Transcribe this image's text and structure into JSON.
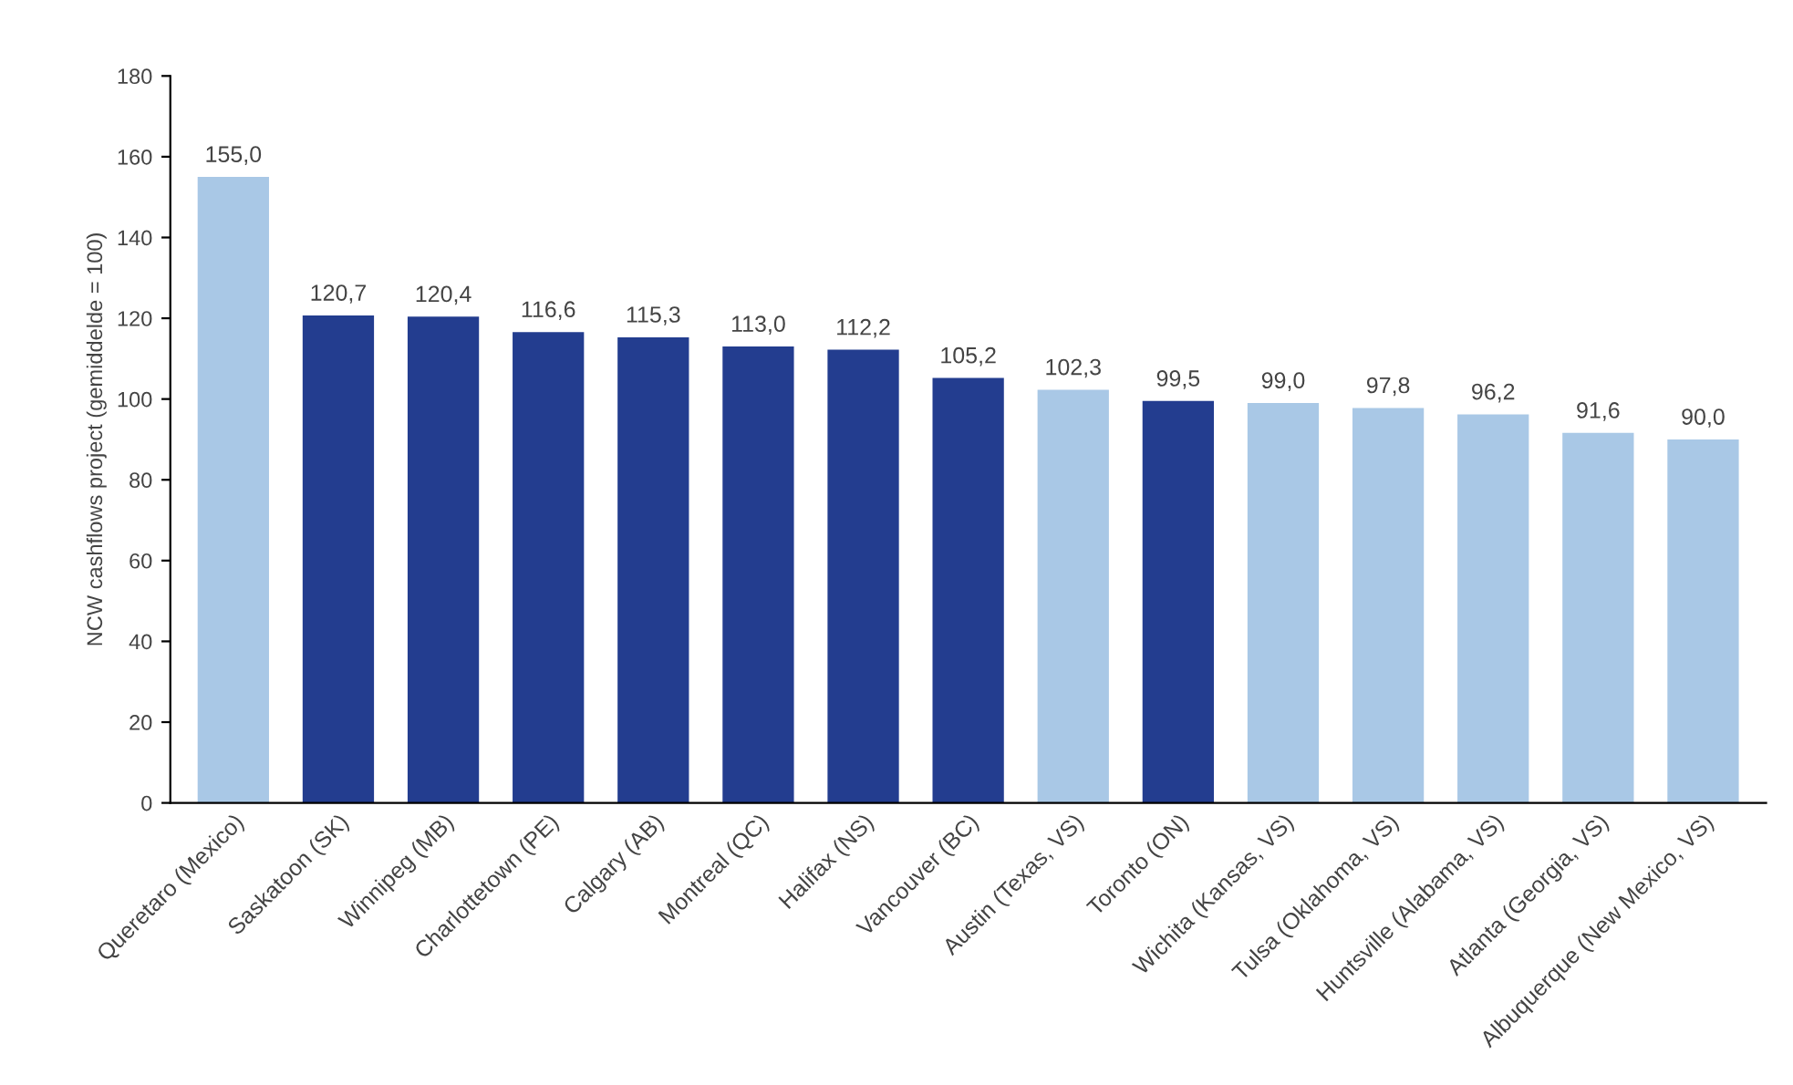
{
  "chart_data": {
    "type": "bar",
    "ylabel": "NCW cashflows project (gemiddelde = 100)",
    "categories": [
      "Queretaro (Mexico)",
      "Saskatoon (SK)",
      "Winnipeg (MB)",
      "Charlottetown (PE)",
      "Calgary (AB)",
      "Montreal (QC)",
      "Halifax (NS)",
      "Vancouver (BC)",
      "Austin (Texas, VS)",
      "Toronto (ON)",
      "Wichita (Kansas, VS)",
      "Tulsa (Oklahoma, VS)",
      "Huntsville (Alabama, VS)",
      "Atlanta (Georgia, VS)",
      "Albuquerque (New Mexico, VS)"
    ],
    "values": [
      155.0,
      120.7,
      120.4,
      116.6,
      115.3,
      113.0,
      112.2,
      105.2,
      102.3,
      99.5,
      99.0,
      97.8,
      96.2,
      91.6,
      90.0
    ],
    "value_labels": [
      "155,0",
      "120,7",
      "120,4",
      "116,6",
      "115,3",
      "113,0",
      "112,2",
      "105,2",
      "102,3",
      "99,5",
      "99,0",
      "97,8",
      "96,2",
      "91,6",
      "90,0"
    ],
    "colors": [
      "#a9c8e6",
      "#233d8f",
      "#233d8f",
      "#233d8f",
      "#233d8f",
      "#233d8f",
      "#233d8f",
      "#233d8f",
      "#a9c8e6",
      "#233d8f",
      "#a9c8e6",
      "#a9c8e6",
      "#a9c8e6",
      "#a9c8e6",
      "#a9c8e6"
    ],
    "ylim": [
      0,
      180
    ],
    "yticks": [
      0,
      20,
      40,
      60,
      80,
      100,
      120,
      140,
      160,
      180
    ],
    "grid": false,
    "legend": false
  }
}
